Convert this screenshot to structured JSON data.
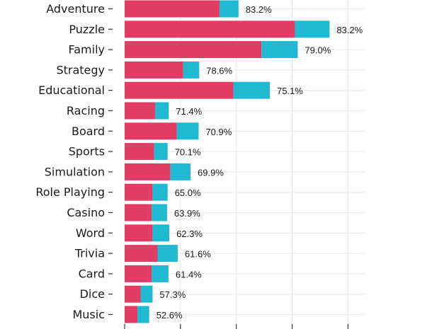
{
  "chart_data": {
    "type": "bar",
    "orientation": "horizontal",
    "stacked": true,
    "categories": [
      "Adventure",
      "Puzzle",
      "Family",
      "Strategy",
      "Educational",
      "Racing",
      "Board",
      "Sports",
      "Simulation",
      "Role Playing",
      "Casino",
      "Word",
      "Trivia",
      "Card",
      "Dice",
      "Music"
    ],
    "series": [
      {
        "color": "#e23e65",
        "values": [
          1700,
          3050,
          2450,
          1050,
          1950,
          550,
          935,
          530,
          820,
          500,
          485,
          500,
          590,
          485,
          290,
          230
        ]
      },
      {
        "color": "#1fbad2",
        "values": [
          340,
          620,
          650,
          285,
          650,
          240,
          390,
          240,
          360,
          270,
          275,
          300,
          360,
          300,
          210,
          210
        ]
      }
    ],
    "data_labels": [
      "83.2%",
      "83.2%",
      "79.0%",
      "78.6%",
      "75.1%",
      "71.4%",
      "70.9%",
      "70.1%",
      "69.9%",
      "65.0%",
      "63.9%",
      "62.3%",
      "61.6%",
      "61.4%",
      "57.3%",
      "52.6%"
    ],
    "xlim": [
      0,
      4300
    ],
    "x_gridlines": [
      0,
      1000,
      2000,
      3000,
      4000
    ],
    "grid": true,
    "legend": "none"
  }
}
